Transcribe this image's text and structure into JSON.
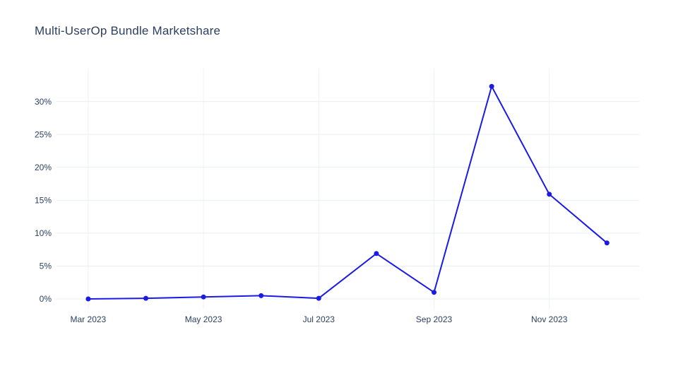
{
  "page": {
    "background_color": "#ffffff"
  },
  "chart_data": {
    "type": "line",
    "title": "Multi-UserOp Bundle Marketshare",
    "categories": [
      "Mar 2023",
      "Apr 2023",
      "May 2023",
      "Jun 2023",
      "Jul 2023",
      "Aug 2023",
      "Sep 2023",
      "Oct 2023",
      "Nov 2023",
      "Dec 2023"
    ],
    "series": [
      {
        "name": "Multi-UserOp Bundle Marketshare",
        "values": [
          0.0,
          0.1,
          0.3,
          0.5,
          0.1,
          6.9,
          1.0,
          32.3,
          15.9,
          8.5
        ]
      }
    ],
    "xlabel": "",
    "ylabel": "",
    "x_tick_labels": [
      "Mar 2023",
      "May 2023",
      "Jul 2023",
      "Sep 2023",
      "Nov 2023"
    ],
    "x_tick_positions": [
      0,
      2,
      4,
      6,
      8
    ],
    "y_tick_labels": [
      "0%",
      "5%",
      "10%",
      "15%",
      "20%",
      "25%",
      "30%"
    ],
    "y_tick_values": [
      0,
      5,
      10,
      15,
      20,
      25,
      30
    ],
    "x_range": [
      -0.55,
      9.56
    ],
    "y_range": [
      -1.5,
      35.0
    ],
    "grid": true,
    "legend_position": "none",
    "colors": {
      "line": "#1b1be6",
      "marker": "#1b1be6",
      "h_grid": "#e8eef6",
      "v_grid": "#eef1f7",
      "tick_text": "#2a3f5f",
      "title_text": "#2a3f5f",
      "plot_background": "#ffffff"
    },
    "style": {
      "line_width": 2,
      "marker_radius": 3.5,
      "tick_font_size": 12,
      "title_font_size": 17
    }
  }
}
